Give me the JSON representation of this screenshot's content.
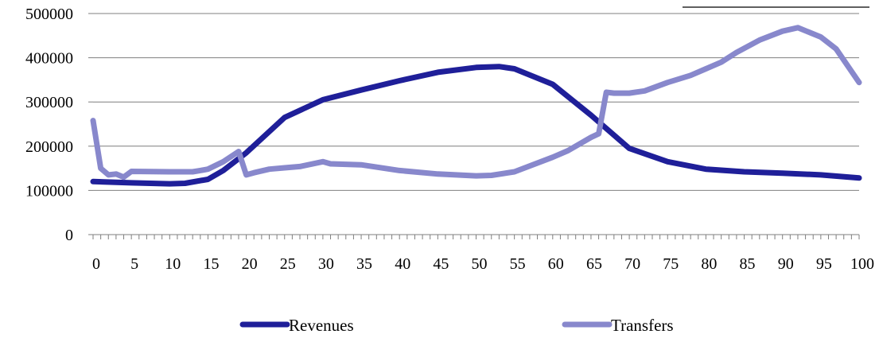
{
  "chart_data": {
    "type": "line",
    "title": "",
    "xlabel": "",
    "ylabel": "",
    "xlim": [
      0,
      100
    ],
    "ylim": [
      0,
      500000
    ],
    "x_ticks": [
      0,
      5,
      10,
      15,
      20,
      25,
      30,
      35,
      40,
      45,
      50,
      55,
      60,
      65,
      70,
      75,
      80,
      85,
      90,
      95,
      100
    ],
    "y_ticks": [
      0,
      100000,
      200000,
      300000,
      400000,
      500000
    ],
    "x_tick_labels": [
      "0",
      "5",
      "10",
      "15",
      "20",
      "25",
      "30",
      "35",
      "40",
      "45",
      "50",
      "55",
      "60",
      "65",
      "70",
      "75",
      "80",
      "85",
      "90",
      "95",
      "100"
    ],
    "y_tick_labels": [
      "0",
      "100000",
      "200000",
      "300000",
      "400000",
      "500000"
    ],
    "grid": true,
    "legend_position": "bottom",
    "series": [
      {
        "name": "Revenues",
        "color": "#1f1f99",
        "x": [
          0,
          5,
          10,
          12,
          15,
          17,
          20,
          25,
          30,
          35,
          40,
          45,
          50,
          53,
          55,
          60,
          65,
          70,
          75,
          80,
          85,
          90,
          95,
          100
        ],
        "y": [
          120000,
          117000,
          115000,
          116000,
          125000,
          145000,
          185000,
          265000,
          305000,
          327000,
          348000,
          367000,
          378000,
          380000,
          375000,
          340000,
          270000,
          195000,
          165000,
          148000,
          142000,
          139000,
          135000,
          128000
        ]
      },
      {
        "name": "Transfers",
        "color": "#8888cc",
        "x": [
          0,
          1,
          2,
          3,
          4,
          5,
          10,
          13,
          14,
          15,
          17,
          19,
          20,
          21,
          23,
          25,
          27,
          30,
          31,
          35,
          40,
          45,
          50,
          52,
          55,
          60,
          62,
          65,
          66,
          67,
          68,
          70,
          72,
          75,
          78,
          80,
          82,
          84,
          87,
          90,
          92,
          95,
          97,
          100
        ],
        "y": [
          258000,
          150000,
          135000,
          137000,
          130000,
          143000,
          142000,
          142000,
          145000,
          148000,
          165000,
          188000,
          135000,
          140000,
          148000,
          151000,
          154000,
          165000,
          160000,
          158000,
          145000,
          137000,
          133000,
          134000,
          142000,
          175000,
          190000,
          220000,
          228000,
          322000,
          320000,
          320000,
          325000,
          344000,
          360000,
          375000,
          390000,
          412000,
          440000,
          460000,
          468000,
          447000,
          420000,
          344000
        ]
      }
    ]
  }
}
